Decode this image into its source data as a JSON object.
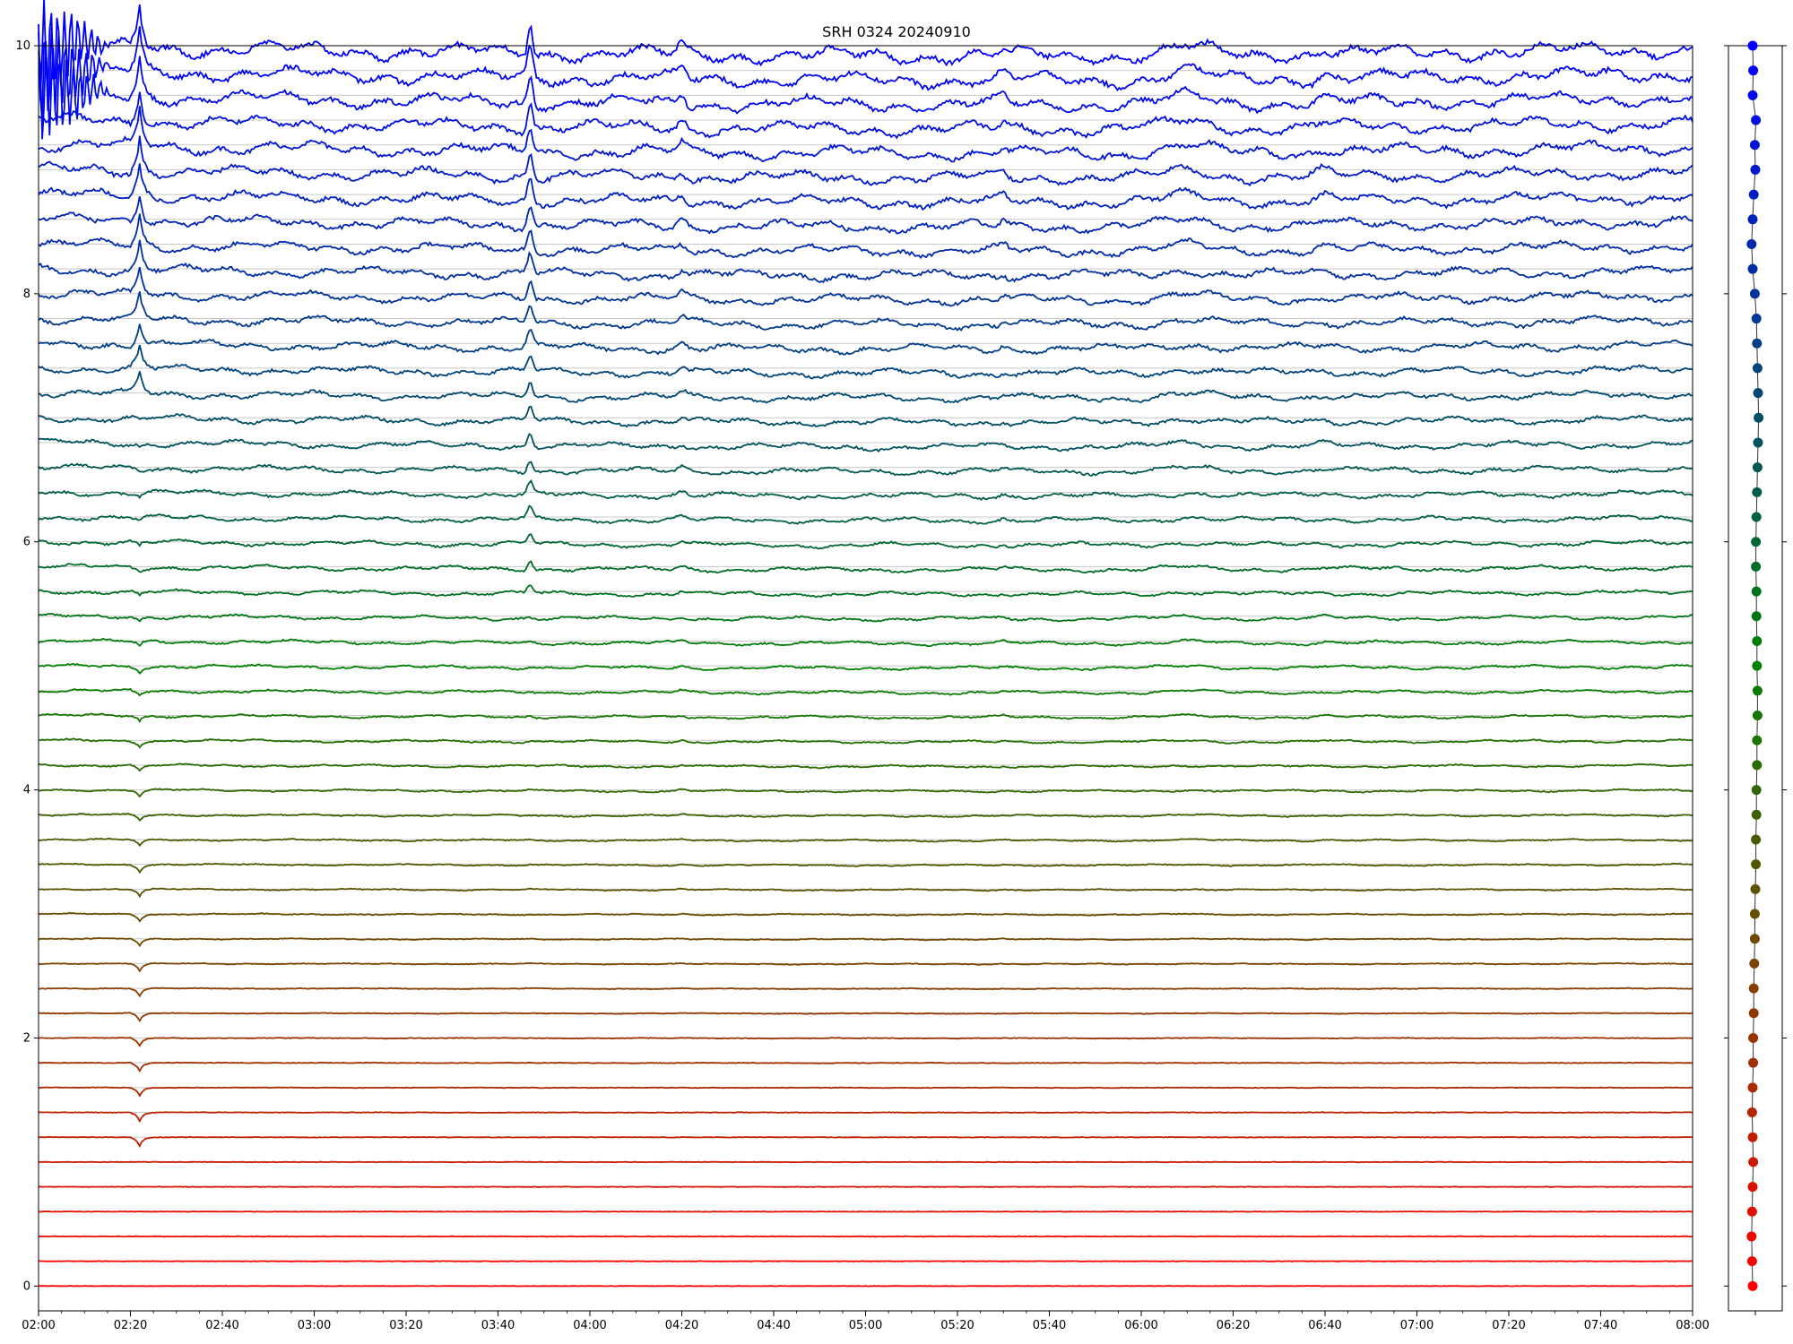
{
  "chart_data": {
    "type": "line",
    "title": "SRH 0324 20240910",
    "xlabel": "",
    "ylabel": "",
    "x_range": [
      "02:00",
      "08:00"
    ],
    "x_tick_labels": [
      "02:00",
      "02:20",
      "02:40",
      "03:00",
      "03:20",
      "03:40",
      "04:00",
      "04:20",
      "04:40",
      "05:00",
      "05:20",
      "05:40",
      "06:00",
      "06:20",
      "06:40",
      "07:00",
      "07:20",
      "07:40",
      "08:00"
    ],
    "ylim": [
      -0.2,
      10
    ],
    "y_tick_values": [
      0,
      2,
      4,
      6,
      8,
      10
    ],
    "grid": "horizontal reference line at each trace baseline",
    "legend": "none",
    "series_count": 51,
    "trace_spacing": 0.2,
    "color_start": "#ff0000",
    "color_mid": "#008000",
    "color_end": "#0000ff",
    "events": [
      {
        "time": "02:22",
        "note": "strong burst; upper traces spike up, lower traces dip"
      },
      {
        "time": "03:47",
        "note": "sharp peak on upper traces"
      },
      {
        "time": "04:20",
        "note": "peak on middle traces"
      },
      {
        "time": "05:30",
        "note": "small peak on middle traces"
      },
      {
        "time": "06:10",
        "note": "broad rise on upper traces"
      },
      {
        "time": "06:40",
        "note": "step feature on upper traces"
      }
    ],
    "side_panel": {
      "description": "per-trace marker positions aligned to trace baselines",
      "offsets": [
        0.0,
        -0.005,
        -0.01,
        -0.005,
        0.0,
        0.005,
        0.0,
        -0.005,
        0.0,
        0.005,
        0.005,
        0.01,
        0.01,
        0.015,
        0.02,
        0.02,
        0.025,
        0.03,
        0.03,
        0.035,
        0.035,
        0.04,
        0.04,
        0.045,
        0.045,
        0.04,
        0.04,
        0.035,
        0.035,
        0.03,
        0.03,
        0.035,
        0.04,
        0.045,
        0.05,
        0.055,
        0.05,
        0.045,
        0.04,
        0.035,
        0.02,
        0.0,
        -0.01,
        0.0,
        0.01,
        0.025,
        0.02,
        0.03,
        0.0,
        0.005,
        0.0
      ]
    }
  }
}
